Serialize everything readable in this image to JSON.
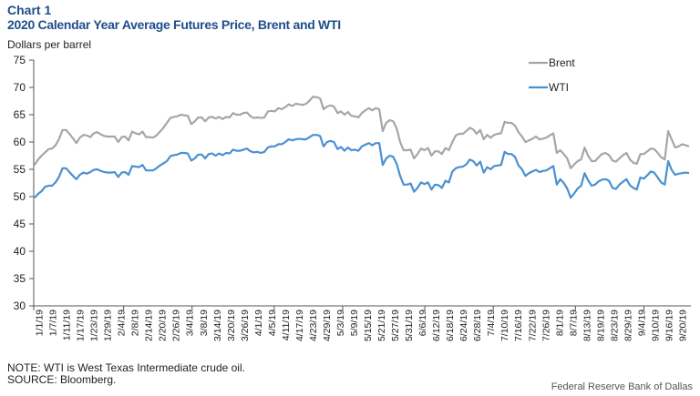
{
  "header": {
    "chart_number": "Chart 1",
    "title": "2020 Calendar Year Average Futures Price, Brent and WTI",
    "units": "Dollars per barrel"
  },
  "footer": {
    "note": "NOTE: WTI is West Texas Intermediate crude oil.",
    "source": "SOURCE: Bloomberg.",
    "credit": "Federal Reserve Bank of Dallas"
  },
  "chart_data": {
    "type": "line",
    "title": "2020 Calendar Year Average Futures Price, Brent and WTI",
    "ylabel": "Dollars per barrel",
    "xlabel": "",
    "ylim": [
      30,
      75
    ],
    "yticks": [
      30,
      35,
      40,
      45,
      50,
      55,
      60,
      65,
      70,
      75
    ],
    "xtick_labels": [
      "1/1/19",
      "1/7/19",
      "1/11/19",
      "1/17/19",
      "1/23/19",
      "1/29/19",
      "2/4/19",
      "2/8/19",
      "2/14/19",
      "2/20/19",
      "2/26/19",
      "3/4/19",
      "3/8/19",
      "3/14/19",
      "3/20/19",
      "3/26/19",
      "4/1/19",
      "4/5/19",
      "4/11/19",
      "4/17/19",
      "4/23/19",
      "4/29/19",
      "5/3/19",
      "5/9/19",
      "5/15/19",
      "5/21/19",
      "5/27/19",
      "5/31/19",
      "6/6/19",
      "6/12/19",
      "6/18/19",
      "6/24/19",
      "6/28/19",
      "7/4/19",
      "7/10/19",
      "7/16/19",
      "7/22/19",
      "7/26/19",
      "8/1/19",
      "8/7/19",
      "8/13/19",
      "8/19/19",
      "8/23/19",
      "8/29/19",
      "9/4/19",
      "9/10/19",
      "9/16/19",
      "9/20/19"
    ],
    "grid": false,
    "legend_position": "top-right",
    "colors": {
      "Brent": "#a6a6a6",
      "WTI": "#4a90d2"
    },
    "series": [
      {
        "name": "Brent",
        "values": [
          55.8,
          56.8,
          57.5,
          58.1,
          58.7,
          58.8,
          59.4,
          60.5,
          62.2,
          62.2,
          61.5,
          60.7,
          59.8,
          60.8,
          61.3,
          61.2,
          60.9,
          61.6,
          61.8,
          61.4,
          61.1,
          61.0,
          61.0,
          61.0,
          60.0,
          60.9,
          61.0,
          60.3,
          61.9,
          61.6,
          61.4,
          61.9,
          60.9,
          60.9,
          60.8,
          61.2,
          61.9,
          62.6,
          63.5,
          64.4,
          64.6,
          64.7,
          65.0,
          64.9,
          64.8,
          63.3,
          63.8,
          64.5,
          64.5,
          63.8,
          64.5,
          64.6,
          64.3,
          64.6,
          64.2,
          64.6,
          64.5,
          65.3,
          65.0,
          65.0,
          65.3,
          65.4,
          64.7,
          64.4,
          64.5,
          64.4,
          64.5,
          65.6,
          65.7,
          65.6,
          66.2,
          66.0,
          66.4,
          66.9,
          66.6,
          67.0,
          66.9,
          66.8,
          67.0,
          67.6,
          68.3,
          68.2,
          68.0,
          66.0,
          66.5,
          66.7,
          66.5,
          65.3,
          65.6,
          65.0,
          65.5,
          64.8,
          64.7,
          64.5,
          65.3,
          65.8,
          66.2,
          65.8,
          66.2,
          66.0,
          62.0,
          63.5,
          64.0,
          63.8,
          62.5,
          60.0,
          58.5,
          58.5,
          58.6,
          57.0,
          57.8,
          58.8,
          58.5,
          58.9,
          57.5,
          58.3,
          58.3,
          57.8,
          58.9,
          58.5,
          60.0,
          61.2,
          61.5,
          61.5,
          62.0,
          62.6,
          62.3,
          61.5,
          62.2,
          60.5,
          61.3,
          60.8,
          61.3,
          61.5,
          61.6,
          63.7,
          63.5,
          63.5,
          63.0,
          61.8,
          61.0,
          60.0,
          60.3,
          60.6,
          61.0,
          60.5,
          60.6,
          60.8,
          61.2,
          61.6,
          58.0,
          58.5,
          57.8,
          57.0,
          55.2,
          55.9,
          56.5,
          56.8,
          59.0,
          57.5,
          56.5,
          56.5,
          57.2,
          57.8,
          58.0,
          57.6,
          56.6,
          56.4,
          57.0,
          57.6,
          58.0,
          56.8,
          56.2,
          56.0,
          57.8,
          57.8,
          58.3,
          58.8,
          58.7,
          58.0,
          57.2,
          56.8,
          62.0,
          60.5,
          59.0,
          59.2,
          59.6,
          59.4,
          59.2
        ]
      },
      {
        "name": "WTI",
        "values": [
          49.8,
          50.5,
          51.0,
          51.8,
          52.0,
          52.0,
          52.6,
          53.6,
          55.2,
          55.2,
          54.5,
          53.8,
          53.2,
          54.0,
          54.4,
          54.2,
          54.5,
          54.9,
          55.0,
          54.7,
          54.5,
          54.4,
          54.4,
          54.5,
          53.6,
          54.4,
          54.5,
          54.0,
          55.6,
          55.5,
          55.4,
          55.8,
          54.8,
          54.8,
          54.8,
          55.2,
          55.7,
          56.1,
          56.5,
          57.4,
          57.6,
          57.7,
          58.0,
          58.0,
          57.9,
          56.6,
          57.0,
          57.7,
          57.7,
          57.0,
          57.8,
          57.9,
          57.5,
          57.9,
          57.6,
          58.0,
          57.9,
          58.6,
          58.4,
          58.4,
          58.6,
          58.8,
          58.3,
          58.1,
          58.2,
          58.0,
          58.2,
          59.0,
          59.2,
          59.2,
          59.6,
          59.6,
          60.0,
          60.5,
          60.3,
          60.5,
          60.6,
          60.5,
          60.5,
          60.9,
          61.3,
          61.3,
          61.1,
          59.2,
          60.0,
          60.2,
          60.0,
          58.7,
          59.1,
          58.4,
          59.0,
          58.5,
          58.6,
          58.4,
          59.2,
          59.5,
          59.8,
          59.4,
          59.8,
          59.8,
          55.8,
          57.0,
          57.5,
          57.3,
          56.0,
          53.8,
          52.2,
          52.2,
          52.4,
          50.9,
          51.6,
          52.6,
          52.3,
          52.6,
          51.3,
          52.2,
          52.1,
          51.6,
          52.9,
          52.6,
          54.6,
          55.2,
          55.4,
          55.5,
          55.9,
          56.8,
          56.5,
          55.7,
          56.4,
          54.4,
          55.4,
          55.0,
          55.6,
          55.7,
          55.8,
          58.2,
          57.8,
          57.8,
          57.3,
          55.7,
          55.0,
          53.8,
          54.3,
          54.6,
          54.9,
          54.5,
          54.7,
          54.8,
          55.2,
          55.6,
          52.2,
          53.2,
          52.5,
          51.5,
          49.8,
          50.6,
          51.5,
          52.0,
          54.3,
          53.0,
          52.0,
          52.2,
          52.8,
          53.1,
          53.2,
          52.9,
          51.6,
          51.4,
          52.2,
          52.7,
          53.2,
          52.1,
          51.6,
          51.3,
          53.5,
          53.3,
          53.9,
          54.6,
          54.4,
          53.5,
          52.6,
          52.2,
          56.5,
          54.9,
          54.0,
          54.2,
          54.3,
          54.4,
          54.3
        ]
      }
    ]
  }
}
